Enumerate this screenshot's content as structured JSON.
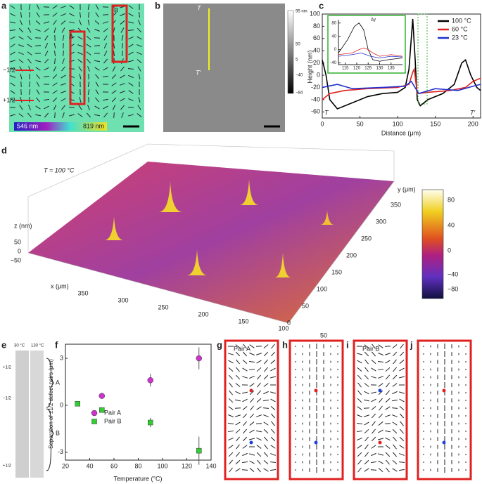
{
  "panels": {
    "a": {
      "label": "a",
      "box_labels": [
        "A",
        "B"
      ],
      "defect_labels": [
        "−1/2",
        "+1/2"
      ],
      "colorbar_labels": [
        "546 nm",
        "819 nm"
      ]
    },
    "b": {
      "label": "b",
      "markers": [
        "T",
        "T′"
      ],
      "colorbar_labels": [
        "95 nm",
        "50",
        "5",
        "−40",
        "−84"
      ]
    },
    "d": {
      "label": "d",
      "annotation": "T = 100 °C",
      "z_label": "z (nm)",
      "z_ticks": [
        "50",
        "0",
        "−50"
      ],
      "x_label": "x (μm)",
      "x_ticks": [
        "350",
        "300",
        "250",
        "200",
        "150",
        "100",
        "50"
      ],
      "y_label": "y (μm)",
      "y_ticks": [
        "350",
        "300",
        "250",
        "200",
        "150",
        "100",
        "50",
        "0"
      ],
      "colorbar_ticks": [
        "80",
        "40",
        "0",
        "−40",
        "−80"
      ]
    },
    "e": {
      "label": "e",
      "temperatures": [
        "30 °C",
        "130 °C"
      ],
      "defect_labels": [
        "+1/2",
        "−1/2",
        "+1/2"
      ],
      "pair_labels": [
        "A",
        "B"
      ]
    },
    "g": {
      "label": "g",
      "title": "Pair A"
    },
    "h": {
      "label": "h"
    },
    "i": {
      "label": "i",
      "title": "Pair B"
    },
    "j": {
      "label": "j"
    }
  },
  "chart_data": [
    {
      "type": "line",
      "label": "c",
      "ylabel": "Height (nm)",
      "xlabel": "Distance (μm)",
      "annotations": [
        "T",
        "T′"
      ],
      "xlim": [
        0,
        210
      ],
      "ylim": [
        -70,
        100
      ],
      "xticks": [
        0,
        50,
        100,
        150,
        200
      ],
      "yticks": [
        -60,
        -40,
        -20,
        0,
        20,
        40,
        60,
        80,
        100
      ],
      "series": [
        {
          "name": "100 °C",
          "color": "#000000",
          "x": [
            0,
            5,
            10,
            20,
            40,
            60,
            80,
            100,
            110,
            115,
            120,
            123,
            126,
            130,
            140,
            160,
            175,
            185,
            190,
            197,
            205,
            210
          ],
          "values": [
            25,
            0,
            -40,
            -55,
            -45,
            -35,
            -30,
            -28,
            -20,
            10,
            92,
            30,
            -40,
            -50,
            -40,
            -30,
            -15,
            20,
            25,
            0,
            -20,
            -25
          ]
        },
        {
          "name": "60 °C",
          "color": "#e02020",
          "x": [
            0,
            10,
            30,
            60,
            100,
            115,
            120,
            122,
            126,
            140,
            170,
            190,
            200,
            210
          ],
          "values": [
            -40,
            -30,
            -25,
            -22,
            -20,
            -15,
            5,
            10,
            -30,
            -28,
            -25,
            -20,
            -10,
            -5
          ]
        },
        {
          "name": "23 °C",
          "color": "#2030d0",
          "x": [
            0,
            20,
            40,
            80,
            110,
            118,
            124,
            128,
            150,
            180,
            200,
            210
          ],
          "values": [
            -20,
            -15,
            -22,
            -20,
            -18,
            -10,
            -22,
            -30,
            -22,
            -25,
            -18,
            -15
          ]
        }
      ]
    },
    {
      "type": "line",
      "annotation": "Δy",
      "xlim": [
        112,
        140
      ],
      "ylim": [
        -45,
        90
      ],
      "xticks": [
        115,
        120,
        125,
        130,
        135
      ],
      "yticks": [
        -40,
        0,
        40,
        80
      ],
      "series": [
        {
          "color": "#000000",
          "x": [
            112,
            116,
            119,
            121,
            123,
            125,
            127,
            130,
            134,
            140
          ],
          "values": [
            -10,
            30,
            70,
            80,
            60,
            0,
            -30,
            -35,
            -30,
            -25
          ]
        },
        {
          "color": "#e02020",
          "x": [
            112,
            118,
            121,
            123,
            125,
            127,
            130,
            135,
            140
          ],
          "values": [
            -15,
            -10,
            0,
            5,
            0,
            -10,
            -20,
            -15,
            -20
          ]
        },
        {
          "color": "#2030d0",
          "x": [
            112,
            118,
            122,
            126,
            130,
            135,
            140
          ],
          "values": [
            -20,
            -15,
            -10,
            -20,
            -25,
            -20,
            -22
          ]
        }
      ]
    },
    {
      "type": "scatter",
      "label": "f",
      "ylabel": "Separation of ±1/2 defect pairs (μm)",
      "xlabel": "Temperature (°C)",
      "xlim": [
        20,
        140
      ],
      "ylim": [
        -3.5,
        3.9
      ],
      "xticks": [
        20,
        40,
        60,
        80,
        100,
        120,
        140
      ],
      "yticks": [
        -3,
        0,
        3
      ],
      "series": [
        {
          "name": "Pair A",
          "color": "#cc33cc",
          "x": [
            50,
            90,
            130
          ],
          "values": [
            0.6,
            1.6,
            3.0
          ],
          "errors": [
            0.1,
            0.4,
            0.7
          ]
        },
        {
          "name": "Pair B",
          "color": "#33cc33",
          "x": [
            30,
            50,
            90,
            130
          ],
          "values": [
            0.1,
            -0.3,
            -1.1,
            -2.9
          ],
          "errors": [
            0.1,
            0.1,
            0.3,
            0.9
          ]
        }
      ]
    }
  ]
}
